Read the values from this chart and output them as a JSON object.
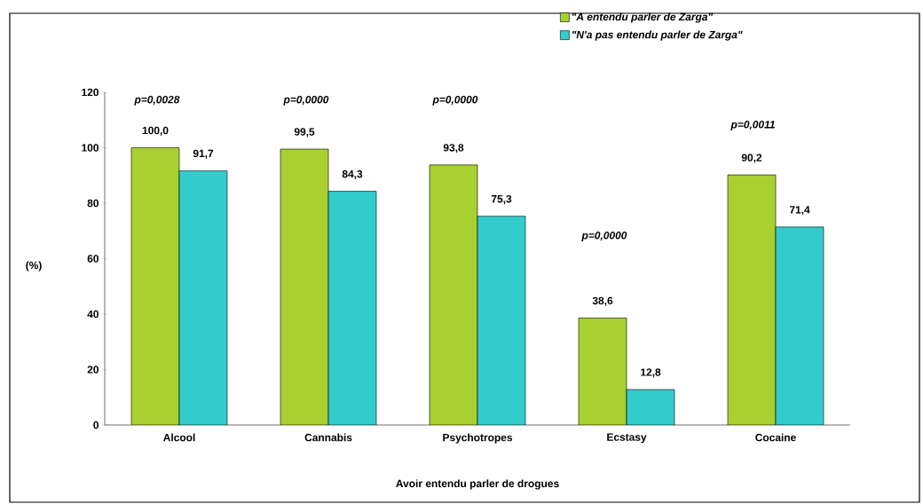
{
  "chart_data": {
    "type": "bar",
    "xlabel": "Avoir entendu parler de drogues",
    "ylabel": "(%)",
    "categories": [
      "Alcool",
      "Cannabis",
      "Psychotropes",
      "Ecstasy",
      "Cocaine"
    ],
    "series": [
      {
        "name": "\"A entendu parler de Zarga\"",
        "color": "#a8d030",
        "values": [
          100.0,
          99.5,
          93.8,
          38.6,
          90.2
        ],
        "value_labels": [
          "100,0",
          "99,5",
          "93,8",
          "38,6",
          "90,2"
        ]
      },
      {
        "name": "\"N'a pas entendu parler de Zarga\"",
        "color": "#33cccc",
        "values": [
          91.7,
          84.3,
          75.3,
          12.8,
          71.4
        ],
        "value_labels": [
          "91,7",
          "84,3",
          "75,3",
          "12,8",
          "71,4"
        ]
      }
    ],
    "ylim": [
      0,
      120
    ],
    "yticks": [
      0,
      20,
      40,
      60,
      80,
      100,
      120
    ],
    "legend": "top right",
    "grid": false,
    "annotations": [
      "p=0,0028",
      "p=0,0000",
      "p=0,0000",
      "p=0,0000",
      "p=0,0011"
    ]
  }
}
